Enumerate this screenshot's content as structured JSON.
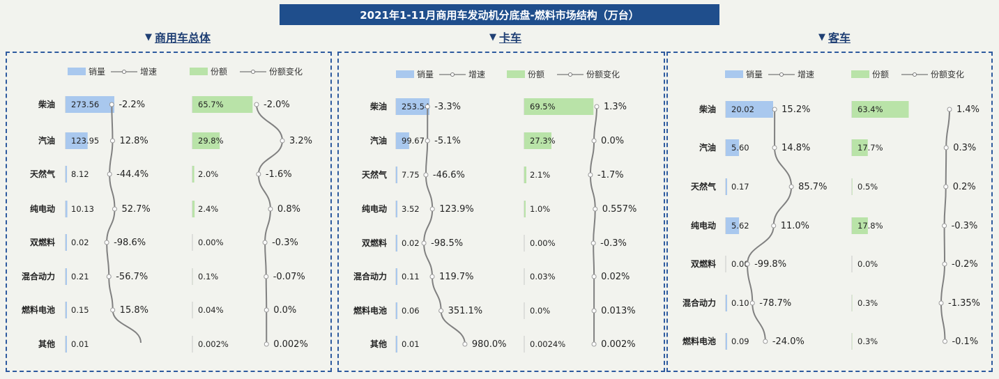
{
  "title": "2021年1-11月商用车发动机分底盘-燃料市场结构（万台）",
  "legend": {
    "sales": "销量",
    "growth": "增速",
    "share": "份额",
    "share_change": "份额变化"
  },
  "colors": {
    "sales_bar": "#a9c8ee",
    "share_bar": "#b9e3a8",
    "line": "#808080",
    "border": "#2d5a9e",
    "title_bg": "#1f4e8c"
  },
  "chart_data": [
    {
      "type": "bar",
      "panel_title": "商用车总体",
      "categories": [
        "柴油",
        "汽油",
        "天然气",
        "纯电动",
        "双燃料",
        "混合动力",
        "燃料电池",
        "其他"
      ],
      "series": [
        {
          "name": "销量",
          "values": [
            273.56,
            123.95,
            8.12,
            10.13,
            0.02,
            0.21,
            0.15,
            0.01
          ],
          "labels": [
            "273.56",
            "123.95",
            "8.12",
            "10.13",
            "0.02",
            "0.21",
            "0.15",
            "0.01"
          ]
        },
        {
          "name": "增速",
          "values": [
            -2.2,
            12.8,
            -44.4,
            52.7,
            -98.6,
            -56.7,
            15.8,
            null
          ],
          "labels": [
            "-2.2%",
            "12.8%",
            "-44.4%",
            "52.7%",
            "-98.6%",
            "-56.7%",
            "15.8%",
            ""
          ]
        },
        {
          "name": "份额",
          "values": [
            65.7,
            29.8,
            2.0,
            2.4,
            0.0,
            0.1,
            0.04,
            0.002
          ],
          "labels": [
            "65.7%",
            "29.8%",
            "2.0%",
            "2.4%",
            "0.00%",
            "0.1%",
            "0.04%",
            "0.002%"
          ]
        },
        {
          "name": "份额变化",
          "values": [
            -2.0,
            3.2,
            -1.6,
            0.8,
            -0.3,
            -0.07,
            0.0,
            0.002
          ],
          "labels": [
            "-2.0%",
            "3.2%",
            "-1.6%",
            "0.8%",
            "-0.3%",
            "-0.07%",
            "0.0%",
            "0.002%"
          ]
        }
      ]
    },
    {
      "type": "bar",
      "panel_title": "卡车",
      "categories": [
        "柴油",
        "汽油",
        "天然气",
        "纯电动",
        "双燃料",
        "混合动力",
        "燃料电池",
        "其他"
      ],
      "series": [
        {
          "name": "销量",
          "values": [
            253.54,
            99.67,
            7.75,
            3.52,
            0.02,
            0.11,
            0.06,
            0.01
          ],
          "labels": [
            "253.54",
            "99.67",
            "7.75",
            "3.52",
            "0.02",
            "0.11",
            "0.06",
            "0.01"
          ]
        },
        {
          "name": "增速",
          "values": [
            -3.3,
            -5.1,
            -46.6,
            123.9,
            -98.5,
            119.7,
            351.1,
            980.0
          ],
          "labels": [
            "-3.3%",
            "-5.1%",
            "-46.6%",
            "123.9%",
            "-98.5%",
            "119.7%",
            "351.1%",
            "980.0%"
          ]
        },
        {
          "name": "份额",
          "values": [
            69.5,
            27.3,
            2.1,
            1.0,
            0.0,
            0.03,
            0.0,
            0.0024
          ],
          "labels": [
            "69.5%",
            "27.3%",
            "2.1%",
            "1.0%",
            "0.00%",
            "0.03%",
            "0.0%",
            "0.0024%"
          ]
        },
        {
          "name": "份额变化",
          "values": [
            1.3,
            0.0,
            -1.7,
            0.557,
            -0.3,
            0.02,
            0.013,
            0.002
          ],
          "labels": [
            "1.3%",
            "0.0%",
            "-1.7%",
            "0.557%",
            "-0.3%",
            "0.02%",
            "0.013%",
            "0.002%"
          ]
        }
      ]
    },
    {
      "type": "bar",
      "panel_title": "客车",
      "categories": [
        "柴油",
        "汽油",
        "天然气",
        "纯电动",
        "双燃料",
        "混合动力",
        "燃料电池"
      ],
      "series": [
        {
          "name": "销量",
          "values": [
            20.02,
            5.6,
            0.17,
            5.62,
            0.0,
            0.1,
            0.09
          ],
          "labels": [
            "20.02",
            "5.60",
            "0.17",
            "5.62",
            "0.00",
            "0.10",
            "0.09"
          ]
        },
        {
          "name": "增速",
          "values": [
            15.2,
            14.8,
            85.7,
            11.0,
            -99.8,
            -78.7,
            -24.0
          ],
          "labels": [
            "15.2%",
            "14.8%",
            "85.7%",
            "11.0%",
            "-99.8%",
            "-78.7%",
            "-24.0%"
          ]
        },
        {
          "name": "份额",
          "values": [
            63.4,
            17.7,
            0.5,
            17.8,
            0.0,
            0.3,
            0.3
          ],
          "labels": [
            "63.4%",
            "17.7%",
            "0.5%",
            "17.8%",
            "0.0%",
            "0.3%",
            "0.3%"
          ]
        },
        {
          "name": "份额变化",
          "values": [
            1.4,
            0.3,
            0.2,
            -0.3,
            -0.2,
            -1.35,
            -0.1
          ],
          "labels": [
            "1.4%",
            "0.3%",
            "0.2%",
            "-0.3%",
            "-0.2%",
            "-1.35%",
            "-0.1%"
          ]
        }
      ]
    }
  ]
}
